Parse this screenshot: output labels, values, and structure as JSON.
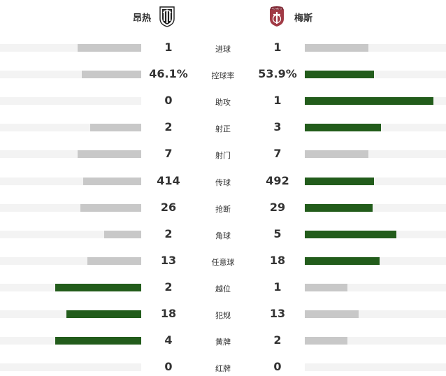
{
  "teams": {
    "home": {
      "name": "昂热",
      "logo_icon": "angers-crest-icon"
    },
    "away": {
      "name": "梅斯",
      "logo_icon": "metz-crest-icon",
      "logo_text": "FC METZ"
    }
  },
  "colors": {
    "win": "#225c1b",
    "lose": "#c8c8c8",
    "track": "#f3f3f3"
  },
  "stats": [
    {
      "label": "进球",
      "home": "1",
      "away": "1",
      "home_bar": 0.45,
      "away_bar": 0.45,
      "home_color": "#c8c8c8",
      "away_color": "#c8c8c8"
    },
    {
      "label": "控球率",
      "home": "46.1%",
      "away": "53.9%",
      "home_bar": 0.42,
      "away_bar": 0.49,
      "home_color": "#c8c8c8",
      "away_color": "#225c1b"
    },
    {
      "label": "助攻",
      "home": "0",
      "away": "1",
      "home_bar": 0,
      "away_bar": 0.91,
      "home_color": "#c8c8c8",
      "away_color": "#225c1b"
    },
    {
      "label": "射正",
      "home": "2",
      "away": "3",
      "home_bar": 0.36,
      "away_bar": 0.54,
      "home_color": "#c8c8c8",
      "away_color": "#225c1b"
    },
    {
      "label": "射门",
      "home": "7",
      "away": "7",
      "home_bar": 0.45,
      "away_bar": 0.45,
      "home_color": "#c8c8c8",
      "away_color": "#c8c8c8"
    },
    {
      "label": "传球",
      "home": "414",
      "away": "492",
      "home_bar": 0.41,
      "away_bar": 0.49,
      "home_color": "#c8c8c8",
      "away_color": "#225c1b"
    },
    {
      "label": "抢断",
      "home": "26",
      "away": "29",
      "home_bar": 0.43,
      "away_bar": 0.48,
      "home_color": "#c8c8c8",
      "away_color": "#225c1b"
    },
    {
      "label": "角球",
      "home": "2",
      "away": "5",
      "home_bar": 0.26,
      "away_bar": 0.65,
      "home_color": "#c8c8c8",
      "away_color": "#225c1b"
    },
    {
      "label": "任意球",
      "home": "13",
      "away": "18",
      "home_bar": 0.38,
      "away_bar": 0.53,
      "home_color": "#c8c8c8",
      "away_color": "#225c1b"
    },
    {
      "label": "越位",
      "home": "2",
      "away": "1",
      "home_bar": 0.61,
      "away_bar": 0.3,
      "home_color": "#225c1b",
      "away_color": "#c8c8c8"
    },
    {
      "label": "犯规",
      "home": "18",
      "away": "13",
      "home_bar": 0.53,
      "away_bar": 0.38,
      "home_color": "#225c1b",
      "away_color": "#c8c8c8"
    },
    {
      "label": "黄牌",
      "home": "4",
      "away": "2",
      "home_bar": 0.61,
      "away_bar": 0.3,
      "home_color": "#225c1b",
      "away_color": "#c8c8c8"
    },
    {
      "label": "红牌",
      "home": "0",
      "away": "0",
      "home_bar": 0,
      "away_bar": 0,
      "home_color": "#c8c8c8",
      "away_color": "#c8c8c8"
    }
  ]
}
